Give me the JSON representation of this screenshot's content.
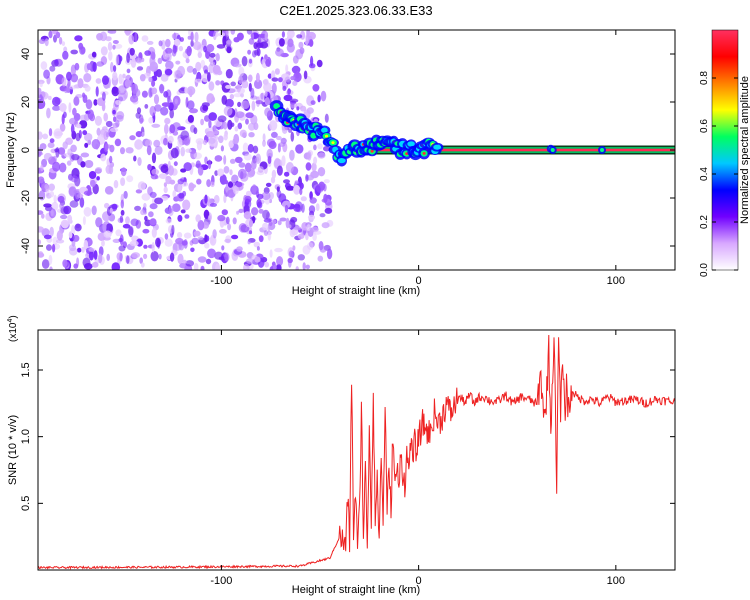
{
  "title": "C2E1.2025.323.06.33.E33",
  "chart_data": [
    {
      "type": "heatmap",
      "panel": "spectrogram",
      "xlabel": "Height of straight line (km)",
      "ylabel": "Frequency (Hz)",
      "xlim": [
        -193,
        130
      ],
      "ylim": [
        -50,
        50
      ],
      "xticks": [
        -100,
        0,
        100
      ],
      "xtick_labels": [
        "-100",
        "0",
        "100"
      ],
      "yticks": [
        -40,
        -20,
        0,
        20,
        40
      ],
      "ytick_labels": [
        "-40",
        "-20",
        "0",
        "20",
        "40"
      ],
      "noise_region_x": [
        -193,
        -52
      ],
      "signal_track": {
        "description": "dispersed tone descending to 0 Hz then steady",
        "x": [
          -72,
          -65,
          -58,
          -50,
          -44,
          -40,
          -35,
          -28,
          -20,
          -12,
          -5,
          5,
          130
        ],
        "y": [
          16,
          13,
          10,
          7,
          4,
          -4,
          1,
          1,
          2,
          1,
          0,
          1,
          0
        ]
      },
      "colorbar": {
        "label": "Normalized spectral amplitude",
        "range": [
          0,
          1
        ],
        "ticks": [
          0.0,
          0.2,
          0.4,
          0.6,
          0.8
        ],
        "tick_labels": [
          "0.0",
          "0.2",
          "0.4",
          "0.6",
          "0.8"
        ],
        "colors": [
          "#ffffff",
          "#d8a8ff",
          "#7000ff",
          "#0000ff",
          "#00c8ff",
          "#00ff60",
          "#ffff00",
          "#ff8000",
          "#ff0000",
          "#ff3060"
        ]
      }
    },
    {
      "type": "line",
      "panel": "snr",
      "xlabel": "Height of straight line (km)",
      "ylabel": "SNR (10 * v/v)",
      "scale_label": "(x10",
      "scale_exp": "4",
      "scale_close": ")",
      "xlim": [
        -193,
        130
      ],
      "ylim": [
        0,
        18000
      ],
      "xticks": [
        -100,
        0,
        100
      ],
      "xtick_labels": [
        "-100",
        "0",
        "100"
      ],
      "yticks": [
        5000,
        10000,
        15000
      ],
      "ytick_labels": [
        "0.5",
        "1.0",
        "1.5"
      ],
      "color": "#ee2222",
      "series": [
        {
          "name": "SNR",
          "x": [
            -193,
            -120,
            -60,
            -45,
            -40,
            -37,
            -36,
            -35,
            -34,
            -33,
            -32,
            -31,
            -30,
            -29,
            -28,
            -27,
            -26,
            -25,
            -24,
            -23,
            -22,
            -21,
            -20,
            -19,
            -18,
            -17,
            -16,
            -15,
            -14,
            -13,
            -12,
            -11,
            -10,
            -9,
            -8,
            -7,
            -6,
            -5,
            -4,
            -3,
            -2,
            -1,
            0,
            2,
            4,
            6,
            8,
            10,
            12,
            14,
            16,
            18,
            20,
            22,
            24,
            26,
            28,
            30,
            33,
            36,
            40,
            44,
            48,
            52,
            56,
            60,
            62,
            64,
            66,
            67,
            68,
            69,
            70,
            71,
            72,
            73,
            74,
            75,
            76,
            78,
            80,
            84,
            88,
            92,
            96,
            100,
            105,
            110,
            115,
            120,
            125,
            130
          ],
          "y": [
            180,
            220,
            300,
            900,
            2500,
            1800,
            5500,
            2200,
            14500,
            3000,
            6000,
            1500,
            4200,
            12500,
            2800,
            7500,
            1900,
            11000,
            3500,
            13500,
            4000,
            6500,
            2500,
            8500,
            3800,
            12000,
            5000,
            7000,
            4500,
            10500,
            6000,
            8000,
            5500,
            9500,
            7000,
            6500,
            8500,
            7500,
            10000,
            8000,
            9500,
            9000,
            9800,
            11000,
            10500,
            10200,
            11800,
            11000,
            11500,
            12500,
            11800,
            12200,
            13000,
            12800,
            12600,
            13200,
            12500,
            12900,
            13000,
            12700,
            12600,
            13100,
            12500,
            13000,
            12800,
            12400,
            14500,
            11000,
            16500,
            10500,
            15000,
            17000,
            5500,
            17800,
            11000,
            16500,
            11500,
            14000,
            12000,
            13500,
            13000,
            12700,
            12800,
            12500,
            13000,
            12600,
            12700,
            12800,
            12500,
            12800,
            12700,
            12600
          ]
        }
      ]
    }
  ]
}
